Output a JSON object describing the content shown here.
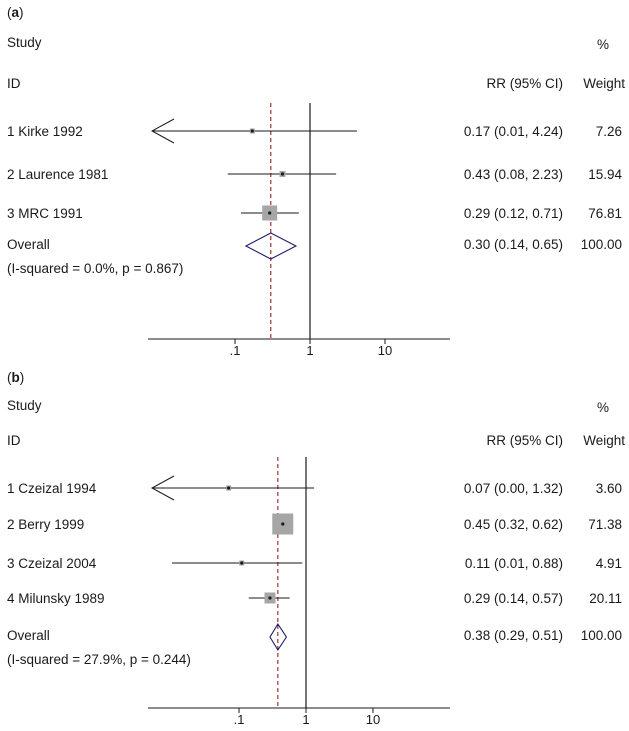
{
  "chart_data": [
    {
      "type": "forest",
      "panel_label": "a",
      "header": {
        "study": "Study",
        "id": "ID",
        "effect": "RR (95% CI)",
        "weight_pct": "%",
        "weight": "Weight"
      },
      "x_scale": "log",
      "xlim": [
        0.01,
        10
      ],
      "x_ticks": [
        ".1",
        "1",
        "10"
      ],
      "null_line": 1,
      "overall_line": 0.3,
      "studies": [
        {
          "num": "1",
          "name": "Kirke 1992",
          "rr": 0.17,
          "lo": 0.01,
          "hi": 4.24,
          "ci_text": "0.17 (0.01, 4.24)",
          "weight": "7.26",
          "arrow_left": true
        },
        {
          "num": "2",
          "name": "Laurence 1981",
          "rr": 0.43,
          "lo": 0.08,
          "hi": 2.23,
          "ci_text": "0.43 (0.08, 2.23)",
          "weight": "15.94",
          "arrow_left": false
        },
        {
          "num": "3",
          "name": "MRC 1991",
          "rr": 0.29,
          "lo": 0.12,
          "hi": 0.71,
          "ci_text": "0.29 (0.12, 0.71)",
          "weight": "76.81",
          "arrow_left": false
        }
      ],
      "overall": {
        "label": "Overall",
        "heterogeneity": "(I-squared = 0.0%, p = 0.867)",
        "rr": 0.3,
        "lo": 0.14,
        "hi": 0.65,
        "ci_text": "0.30 (0.14, 0.65)",
        "weight": "100.00"
      }
    },
    {
      "type": "forest",
      "panel_label": "b",
      "header": {
        "study": "Study",
        "id": "ID",
        "effect": "RR (95% CI)",
        "weight_pct": "%",
        "weight": "Weight"
      },
      "x_scale": "log",
      "xlim": [
        0.01,
        10
      ],
      "x_ticks": [
        ".1",
        "1",
        "10"
      ],
      "null_line": 1,
      "overall_line": 0.38,
      "studies": [
        {
          "num": "1",
          "name": "Czeizal 1994",
          "rr": 0.07,
          "lo": 0.0,
          "hi": 1.32,
          "ci_text": "0.07 (0.00, 1.32)",
          "weight": "3.60",
          "arrow_left": true
        },
        {
          "num": "2",
          "name": "Berry 1999",
          "rr": 0.45,
          "lo": 0.32,
          "hi": 0.62,
          "ci_text": "0.45 (0.32, 0.62)",
          "weight": "71.38",
          "arrow_left": false
        },
        {
          "num": "3",
          "name": "Czeizal 2004",
          "rr": 0.11,
          "lo": 0.01,
          "hi": 0.88,
          "ci_text": "0.11 (0.01, 0.88)",
          "weight": "4.91",
          "arrow_left": false
        },
        {
          "num": "4",
          "name": "Milunsky 1989",
          "rr": 0.29,
          "lo": 0.14,
          "hi": 0.57,
          "ci_text": "0.29 (0.14, 0.57)",
          "weight": "20.11",
          "arrow_left": false
        }
      ],
      "overall": {
        "label": "Overall",
        "heterogeneity": "(I-squared = 27.9%, p = 0.244)",
        "rr": 0.38,
        "lo": 0.29,
        "hi": 0.51,
        "ci_text": "0.38 (0.29, 0.51)",
        "weight": "100.00"
      }
    }
  ],
  "colors": {
    "text": "#1a1a1a",
    "box": "#a6a6a6",
    "diamond": "#1d1d6b",
    "overall_line": "#a01c1c",
    "line": "#1a1a1a"
  }
}
